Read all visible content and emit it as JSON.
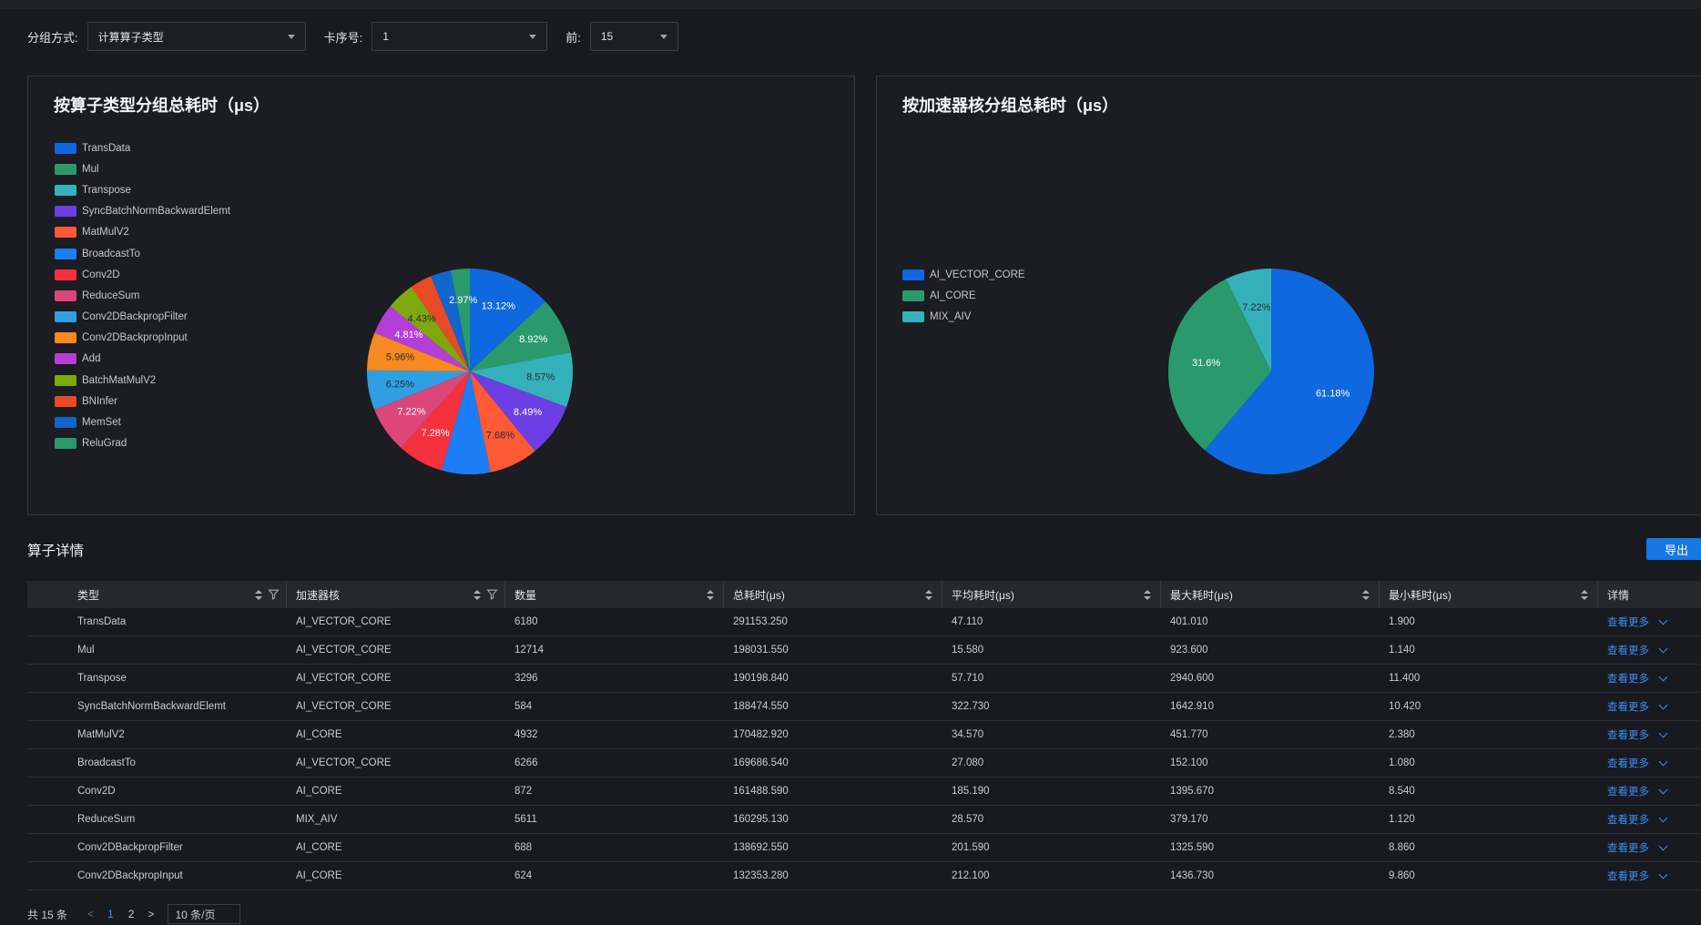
{
  "filters": {
    "group_label": "分组方式:",
    "group_value": "计算算子类型",
    "card_label": "卡序号:",
    "card_value": "1",
    "top_label": "前:",
    "top_value": "15"
  },
  "colors": {
    "accent": "#1677e5",
    "link": "#3b8ff5",
    "background": "#181a1f",
    "panel_border": "#34373e"
  },
  "chart_data": [
    {
      "type": "pie",
      "title": "按算子类型分组总耗时（μs）",
      "legend_position": "left",
      "slices": [
        {
          "label": "TransData",
          "value": 13.12,
          "display": "13.12%",
          "color": "#0f68e0"
        },
        {
          "label": "Mul",
          "value": 8.92,
          "display": "8.92%",
          "color": "#2a9a6c"
        },
        {
          "label": "Transpose",
          "value": 8.57,
          "display": "8.57%",
          "color": "#35b1bb"
        },
        {
          "label": "SyncBatchNormBackwardElemt",
          "value": 8.49,
          "display": "8.49%",
          "color": "#6d3ee3"
        },
        {
          "label": "MatMulV2",
          "value": 7.68,
          "display": "7.68%",
          "color": "#ff5935"
        },
        {
          "label": "BroadcastTo",
          "value": 7.65,
          "display": "",
          "color": "#1c7ef5"
        },
        {
          "label": "Conv2D",
          "value": 7.28,
          "display": "7.28%",
          "color": "#f6313e"
        },
        {
          "label": "ReduceSum",
          "value": 7.22,
          "display": "7.22%",
          "color": "#dc4679"
        },
        {
          "label": "Conv2DBackpropFilter",
          "value": 6.25,
          "display": "6.25%",
          "color": "#2f9fe3"
        },
        {
          "label": "Conv2DBackpropInput",
          "value": 5.96,
          "display": "5.96%",
          "color": "#f6891f"
        },
        {
          "label": "Add",
          "value": 4.81,
          "display": "4.81%",
          "color": "#b43fd6"
        },
        {
          "label": "BatchMatMulV2",
          "value": 4.43,
          "display": "4.43%",
          "color": "#7ea80e"
        },
        {
          "label": "BNInfer",
          "value": 3.45,
          "display": "",
          "color": "#e94a25"
        },
        {
          "label": "MemSet",
          "value": 3.2,
          "display": "",
          "color": "#1165cc"
        },
        {
          "label": "ReluGrad",
          "value": 2.97,
          "display": "2.97%",
          "color": "#2a9a6c"
        }
      ]
    },
    {
      "type": "pie",
      "title": "按加速器核分组总耗时（μs）",
      "legend_position": "left",
      "slices": [
        {
          "label": "AI_VECTOR_CORE",
          "value": 61.18,
          "display": "61.18%",
          "color": "#0f68e0"
        },
        {
          "label": "AI_CORE",
          "value": 31.6,
          "display": "31.6%",
          "color": "#2a9a6c"
        },
        {
          "label": "MIX_AIV",
          "value": 7.22,
          "display": "7.22%",
          "color": "#35b1bb"
        }
      ]
    }
  ],
  "details": {
    "title": "算子详情",
    "export_label": "导出",
    "columns": [
      "类型",
      "加速器核",
      "数量",
      "总耗时(μs)",
      "平均耗时(μs)",
      "最大耗时(μs)",
      "最小耗时(μs)",
      "详情"
    ],
    "more_label": "查看更多",
    "rows": [
      [
        "TransData",
        "AI_VECTOR_CORE",
        "6180",
        "291153.250",
        "47.110",
        "401.010",
        "1.900"
      ],
      [
        "Mul",
        "AI_VECTOR_CORE",
        "12714",
        "198031.550",
        "15.580",
        "923.600",
        "1.140"
      ],
      [
        "Transpose",
        "AI_VECTOR_CORE",
        "3296",
        "190198.840",
        "57.710",
        "2940.600",
        "11.400"
      ],
      [
        "SyncBatchNormBackwardElemt",
        "AI_VECTOR_CORE",
        "584",
        "188474.550",
        "322.730",
        "1642.910",
        "10.420"
      ],
      [
        "MatMulV2",
        "AI_CORE",
        "4932",
        "170482.920",
        "34.570",
        "451.770",
        "2.380"
      ],
      [
        "BroadcastTo",
        "AI_VECTOR_CORE",
        "6266",
        "169686.540",
        "27.080",
        "152.100",
        "1.080"
      ],
      [
        "Conv2D",
        "AI_CORE",
        "872",
        "161488.590",
        "185.190",
        "1395.670",
        "8.540"
      ],
      [
        "ReduceSum",
        "MIX_AIV",
        "5611",
        "160295.130",
        "28.570",
        "379.170",
        "1.120"
      ],
      [
        "Conv2DBackpropFilter",
        "AI_CORE",
        "688",
        "138692.550",
        "201.590",
        "1325.590",
        "8.860"
      ],
      [
        "Conv2DBackpropInput",
        "AI_CORE",
        "624",
        "132353.280",
        "212.100",
        "1436.730",
        "9.860"
      ]
    ]
  },
  "pagination": {
    "total_label": "共 15 条",
    "prev": "<",
    "next": ">",
    "pages": [
      "1",
      "2"
    ],
    "current": "1",
    "page_size": "10 条/页"
  }
}
